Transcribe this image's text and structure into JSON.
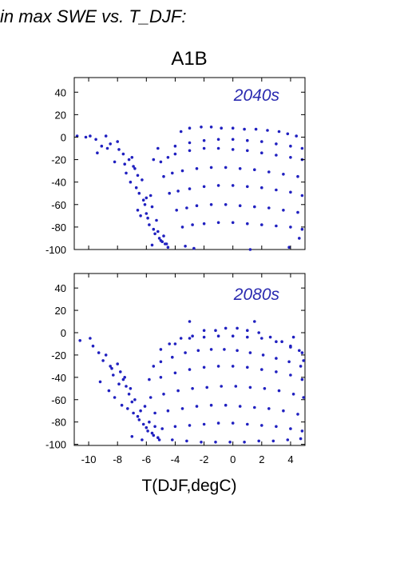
{
  "header_text": "in max SWE vs. T_DJF:",
  "scenario_title": "A1B",
  "xlabel": "T(DJF,degC)",
  "point_color": "#2020c0",
  "label_color": "#2a2ab0",
  "chart_data": [
    {
      "type": "scatter",
      "title": "2040s",
      "xlabel": "T(DJF,degC)",
      "ylabel": "",
      "xlim": [
        -11,
        5
      ],
      "ylim": [
        -100,
        53
      ],
      "xticks": [
        -10,
        -8,
        -6,
        -4,
        -2,
        0,
        2,
        4
      ],
      "yticks": [
        -100,
        -80,
        -60,
        -40,
        -20,
        0,
        20,
        40
      ],
      "grid": false,
      "series": [
        {
          "x": [
            -10.8,
            -10.2,
            -9.9,
            -9.5,
            -9.1,
            -8.8,
            -9.4,
            -8.5,
            -8.0,
            -7.6,
            -7.2,
            -8.7,
            -8.2,
            -7.9,
            -7.5,
            -7.0,
            -6.8,
            -6.6,
            -7.4,
            -7.1,
            -6.9,
            -6.7,
            -6.5,
            -6.3,
            -6.2,
            -6.1,
            -6.6,
            -6.4,
            -6.0,
            -5.9,
            -5.8,
            -5.7,
            -5.5,
            -5.4,
            -5.3,
            -5.1,
            -5.0,
            -5.6,
            -5.2,
            -4.8,
            -4.6,
            -4.9,
            -4.5,
            -3.6,
            -3.0,
            -2.2,
            -1.5,
            -0.8,
            0.0,
            0.8,
            1.6,
            2.4,
            3.2,
            3.8,
            4.4,
            -5.2,
            -4.0,
            -3.0,
            -2.0,
            -1.0,
            0.0,
            1.0,
            2.0,
            3.0,
            4.0,
            4.8,
            -5.5,
            -5.0,
            -4.5,
            -4.0,
            -3.0,
            -2.0,
            -1.0,
            0.0,
            1.0,
            2.0,
            3.0,
            4.0,
            4.8,
            -4.8,
            -4.2,
            -3.5,
            -2.5,
            -1.5,
            -0.5,
            0.5,
            1.5,
            2.5,
            3.5,
            4.5,
            -4.4,
            -3.8,
            -3.0,
            -2.0,
            -1.0,
            0.0,
            1.0,
            2.0,
            3.0,
            4.0,
            4.8,
            -3.9,
            -3.2,
            -2.5,
            -1.5,
            -0.5,
            0.5,
            1.5,
            2.5,
            3.5,
            4.5,
            -3.5,
            -2.8,
            -2.0,
            -1.0,
            0.0,
            1.0,
            2.0,
            3.0,
            4.0,
            4.8,
            -5.6,
            -4.7,
            -3.3,
            -2.7,
            1.2,
            3.9,
            -6.0,
            4.6
          ],
          "y": [
            1,
            0,
            1,
            -2,
            -8,
            1,
            -14,
            -6,
            -4,
            -15,
            -20,
            -10,
            -22,
            -11,
            -24,
            -18,
            -28,
            -34,
            -32,
            -40,
            -26,
            -45,
            -50,
            -38,
            -56,
            -60,
            -65,
            -70,
            -54,
            -72,
            -78,
            -52,
            -82,
            -86,
            -74,
            -90,
            -92,
            -62,
            -84,
            -88,
            -95,
            -93,
            -98,
            5,
            8,
            9,
            9,
            8,
            8,
            7,
            7,
            6,
            5,
            3,
            1,
            -10,
            -8,
            -5,
            -3,
            -2,
            -2,
            -3,
            -4,
            -6,
            -8,
            -10,
            -20,
            -22,
            -18,
            -15,
            -12,
            -10,
            -10,
            -11,
            -12,
            -14,
            -16,
            -18,
            -20,
            -35,
            -32,
            -30,
            -28,
            -27,
            -27,
            -28,
            -29,
            -31,
            -33,
            -35,
            -50,
            -48,
            -46,
            -44,
            -43,
            -43,
            -44,
            -45,
            -47,
            -49,
            -52,
            -65,
            -63,
            -61,
            -60,
            -60,
            -61,
            -62,
            -63,
            -65,
            -67,
            -80,
            -78,
            -77,
            -76,
            -76,
            -77,
            -78,
            -79,
            -80,
            -82,
            -96,
            -95,
            -97,
            -99,
            -100,
            -98,
            -68,
            -90
          ]
        }
      ]
    },
    {
      "type": "scatter",
      "title": "2080s",
      "xlabel": "T(DJF,degC)",
      "ylabel": "",
      "xlim": [
        -11,
        5
      ],
      "ylim": [
        -101,
        53
      ],
      "xticks": [
        -10,
        -8,
        -6,
        -4,
        -2,
        0,
        2,
        4
      ],
      "yticks": [
        -100,
        -80,
        -60,
        -40,
        -20,
        0,
        20,
        40
      ],
      "grid": false,
      "series": [
        {
          "x": [
            -10.6,
            -9.9,
            -9.7,
            -9.3,
            -9.0,
            -8.8,
            -8.5,
            -8.3,
            -8.0,
            -7.8,
            -7.6,
            -7.4,
            -9.2,
            -8.6,
            -8.2,
            -7.9,
            -7.5,
            -7.2,
            -7.0,
            -8.4,
            -7.7,
            -7.3,
            -7.1,
            -6.9,
            -6.8,
            -6.6,
            -6.5,
            -6.4,
            -6.2,
            -6.1,
            -6.0,
            -5.9,
            -5.8,
            -5.6,
            -5.5,
            -5.4,
            -5.2,
            -5.1,
            -4.4,
            -3.6,
            -2.8,
            -2.0,
            -1.2,
            -0.5,
            0.3,
            1.0,
            1.8,
            2.6,
            3.4,
            4.0,
            4.6,
            -5.0,
            -4.0,
            -3.0,
            -2.0,
            -1.0,
            0.0,
            1.0,
            2.0,
            3.0,
            4.0,
            4.8,
            -5.5,
            -5.0,
            -4.2,
            -3.3,
            -2.4,
            -1.5,
            -0.6,
            0.3,
            1.2,
            2.1,
            3.0,
            3.9,
            4.7,
            -5.8,
            -5.0,
            -4.0,
            -3.0,
            -2.0,
            -1.0,
            0.0,
            1.0,
            2.0,
            3.0,
            4.0,
            4.8,
            -5.7,
            -4.8,
            -3.8,
            -2.8,
            -1.8,
            -0.8,
            0.2,
            1.2,
            2.2,
            3.2,
            4.2,
            4.9,
            -5.4,
            -4.5,
            -3.5,
            -2.5,
            -1.5,
            -0.5,
            0.5,
            1.5,
            2.5,
            3.5,
            4.5,
            -4.9,
            -4.0,
            -3.0,
            -2.0,
            -1.0,
            0.0,
            1.0,
            2.0,
            3.0,
            4.0,
            4.8,
            -4.2,
            -3.2,
            -2.2,
            -1.2,
            -0.2,
            0.8,
            1.8,
            2.8,
            3.8,
            4.7,
            -3.0,
            1.5,
            4.2,
            4.9,
            -6.3,
            -7.0
          ],
          "y": [
            -7,
            -5,
            -12,
            -18,
            -25,
            -20,
            -30,
            -38,
            -28,
            -35,
            -42,
            -48,
            -44,
            -52,
            -58,
            -46,
            -40,
            -55,
            -62,
            -32,
            -65,
            -68,
            -50,
            -72,
            -60,
            -75,
            -78,
            -70,
            -82,
            -66,
            -85,
            -88,
            -80,
            -90,
            -92,
            -84,
            -94,
            -96,
            -10,
            -5,
            -3,
            2,
            2,
            4,
            4,
            2,
            0,
            -4,
            -8,
            -12,
            -16,
            -15,
            -10,
            -5,
            -4,
            -3,
            -3,
            -4,
            -5,
            -8,
            -13,
            -18,
            -30,
            -26,
            -22,
            -18,
            -16,
            -15,
            -15,
            -16,
            -18,
            -20,
            -23,
            -26,
            -30,
            -42,
            -40,
            -36,
            -33,
            -31,
            -30,
            -30,
            -31,
            -33,
            -35,
            -38,
            -42,
            -58,
            -55,
            -52,
            -50,
            -49,
            -48,
            -48,
            -49,
            -50,
            -52,
            -55,
            -58,
            -72,
            -70,
            -68,
            -66,
            -65,
            -65,
            -66,
            -67,
            -68,
            -70,
            -73,
            -86,
            -84,
            -83,
            -82,
            -81,
            -81,
            -82,
            -83,
            -84,
            -86,
            -88,
            -96,
            -97,
            -98,
            -98,
            -98,
            -98,
            -97,
            -97,
            -96,
            -95,
            10,
            10,
            -4,
            -25,
            -96,
            -93
          ]
        }
      ]
    }
  ]
}
